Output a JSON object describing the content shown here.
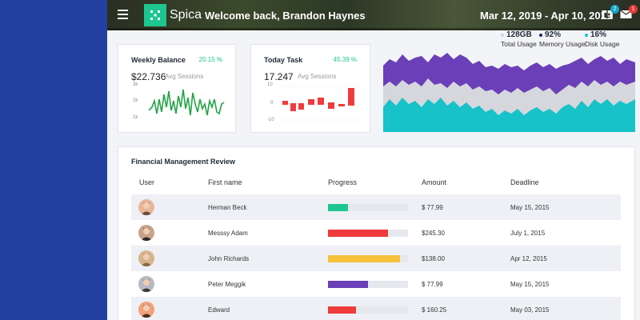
{
  "header": {
    "brand": "Spica",
    "welcome": "Welcome back, Brandon Haynes",
    "date_range": "Mar 12, 2019 - Apr 10, 2019",
    "notifications": {
      "icon": "gift-icon",
      "count": "2",
      "color": "#17a6c4"
    },
    "messages": {
      "icon": "mail-icon",
      "count": "1",
      "color": "#e53935"
    }
  },
  "stats": [
    {
      "value": "128GB",
      "label": "Total Usage",
      "dot_color": "#d0d4dc"
    },
    {
      "value": "92%",
      "label": "Memory Usage",
      "dot_color": "#6a3fb8"
    },
    {
      "value": "16%",
      "label": "Disk Usage",
      "dot_color": "#17c2c9"
    }
  ],
  "cards": {
    "weekly": {
      "title": "Weekly Balance",
      "pct": "20.15 %",
      "value": "$22.736",
      "sub": "Avg Sessions",
      "y_ticks": [
        "3k",
        "2k",
        "1k"
      ]
    },
    "today": {
      "title": "Today Task",
      "pct": "45.39 %",
      "value": "17.247",
      "sub": "Avg Sessions",
      "y_ticks": [
        "10",
        "0",
        "-10"
      ]
    }
  },
  "table": {
    "title": "Financial Management Review",
    "headers": [
      "User",
      "First name",
      "Progress",
      "Amount",
      "Deadline"
    ],
    "rows": [
      {
        "name": "Herman Beck",
        "progress": 0.25,
        "color": "#1ec68f",
        "amount": "$ 77.99",
        "deadline": "May 15, 2015",
        "avatar_bg": "#e8b59a"
      },
      {
        "name": "Messsy Adam",
        "progress": 0.75,
        "color": "#ef3b3b",
        "amount": "$245.30",
        "deadline": "July 1, 2015",
        "avatar_bg": "#c9a28a"
      },
      {
        "name": "John Richards",
        "progress": 0.9,
        "color": "#f7c23a",
        "amount": "$138.00",
        "deadline": "Apr 12, 2015",
        "avatar_bg": "#d8b48c"
      },
      {
        "name": "Peter Meggik",
        "progress": 0.5,
        "color": "#6a3fb8",
        "amount": "$ 77.99",
        "deadline": "May 15, 2015",
        "avatar_bg": "#b9b9c2"
      },
      {
        "name": "Edward",
        "progress": 0.35,
        "color": "#ef3b3b",
        "amount": "$ 160.25",
        "deadline": "May 03, 2015",
        "avatar_bg": "#f0a07a"
      }
    ]
  },
  "colors": {
    "sidebar": "#2340a0",
    "accent_green": "#1ec68f",
    "area_purple": "#6a3fb8",
    "area_gray": "#d6d7dc",
    "area_cyan": "#17c2c9"
  }
}
